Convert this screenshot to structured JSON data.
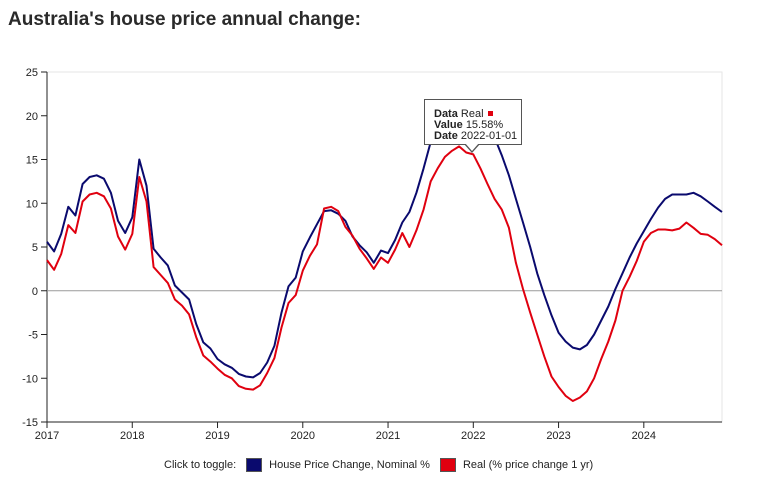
{
  "page": {
    "title": "Australia's house price annual change:"
  },
  "chart_data": {
    "type": "line",
    "title": "Australia's house price annual change:",
    "xlabel": "",
    "ylabel": "",
    "xlim": [
      2017.0,
      2024.917
    ],
    "ylim": [
      -15,
      25
    ],
    "yticks": [
      -15,
      -10,
      -5,
      0,
      5,
      10,
      15,
      20,
      25
    ],
    "xticks": [
      2017,
      2018,
      2019,
      2020,
      2021,
      2022,
      2023,
      2024
    ],
    "grid": false,
    "zero_line": true,
    "legend_position": "bottom",
    "series": [
      {
        "name": "House Price Change, Nominal %",
        "color": "#0a0a6e",
        "x": [
          2017.0,
          2017.083,
          2017.167,
          2017.25,
          2017.333,
          2017.417,
          2017.5,
          2017.583,
          2017.667,
          2017.75,
          2017.833,
          2017.917,
          2018.0,
          2018.083,
          2018.167,
          2018.25,
          2018.333,
          2018.417,
          2018.5,
          2018.583,
          2018.667,
          2018.75,
          2018.833,
          2018.917,
          2019.0,
          2019.083,
          2019.167,
          2019.25,
          2019.333,
          2019.417,
          2019.5,
          2019.583,
          2019.667,
          2019.75,
          2019.833,
          2019.917,
          2020.0,
          2020.083,
          2020.167,
          2020.25,
          2020.333,
          2020.417,
          2020.5,
          2020.583,
          2020.667,
          2020.75,
          2020.833,
          2020.917,
          2021.0,
          2021.083,
          2021.167,
          2021.25,
          2021.333,
          2021.417,
          2021.5,
          2021.583,
          2021.667,
          2021.75,
          2021.833,
          2021.917,
          2022.0,
          2022.083,
          2022.167,
          2022.25,
          2022.333,
          2022.417,
          2022.5,
          2022.583,
          2022.667,
          2022.75,
          2022.833,
          2022.917,
          2023.0,
          2023.083,
          2023.167,
          2023.25,
          2023.333,
          2023.417,
          2023.5,
          2023.583,
          2023.667,
          2023.75,
          2023.833,
          2023.917,
          2024.0,
          2024.083,
          2024.167,
          2024.25,
          2024.333,
          2024.417,
          2024.5,
          2024.583,
          2024.667,
          2024.75,
          2024.833,
          2024.917
        ],
        "values": [
          5.6,
          4.5,
          6.5,
          9.6,
          8.6,
          12.2,
          13.0,
          13.2,
          12.8,
          11.2,
          8.0,
          6.6,
          8.4,
          15.0,
          12.0,
          4.8,
          3.8,
          2.9,
          0.6,
          -0.2,
          -1.0,
          -3.8,
          -5.9,
          -6.6,
          -7.8,
          -8.4,
          -8.8,
          -9.5,
          -9.8,
          -9.9,
          -9.4,
          -8.2,
          -6.3,
          -2.5,
          0.5,
          1.5,
          4.5,
          6.1,
          7.6,
          9.1,
          9.2,
          8.8,
          8.0,
          6.2,
          5.2,
          4.4,
          3.2,
          4.6,
          4.3,
          5.8,
          7.8,
          9.0,
          11.2,
          14.0,
          17.0,
          18.0,
          18.3,
          18.6,
          19.0,
          18.2,
          16.4,
          17.0,
          19.0,
          17.5,
          15.5,
          13.2,
          10.5,
          7.8,
          5.0,
          2.0,
          -0.5,
          -2.8,
          -4.8,
          -5.8,
          -6.5,
          -6.7,
          -6.2,
          -5.0,
          -3.4,
          -1.8,
          0.2,
          2.0,
          3.8,
          5.4,
          6.8,
          8.2,
          9.5,
          10.5,
          11.0,
          11.0,
          11.0,
          11.2,
          10.8,
          10.2,
          9.6,
          9.0
        ],
        "toggle_label": "House Price Change, Nominal %"
      },
      {
        "name": "Real (% price change 1 yr)",
        "color": "#e0000f",
        "x": [
          2017.0,
          2017.083,
          2017.167,
          2017.25,
          2017.333,
          2017.417,
          2017.5,
          2017.583,
          2017.667,
          2017.75,
          2017.833,
          2017.917,
          2018.0,
          2018.083,
          2018.167,
          2018.25,
          2018.333,
          2018.417,
          2018.5,
          2018.583,
          2018.667,
          2018.75,
          2018.833,
          2018.917,
          2019.0,
          2019.083,
          2019.167,
          2019.25,
          2019.333,
          2019.417,
          2019.5,
          2019.583,
          2019.667,
          2019.75,
          2019.833,
          2019.917,
          2020.0,
          2020.083,
          2020.167,
          2020.25,
          2020.333,
          2020.417,
          2020.5,
          2020.583,
          2020.667,
          2020.75,
          2020.833,
          2020.917,
          2021.0,
          2021.083,
          2021.167,
          2021.25,
          2021.333,
          2021.417,
          2021.5,
          2021.583,
          2021.667,
          2021.75,
          2021.833,
          2021.917,
          2022.0,
          2022.083,
          2022.167,
          2022.25,
          2022.333,
          2022.417,
          2022.5,
          2022.583,
          2022.667,
          2022.75,
          2022.833,
          2022.917,
          2023.0,
          2023.083,
          2023.167,
          2023.25,
          2023.333,
          2023.417,
          2023.5,
          2023.583,
          2023.667,
          2023.75,
          2023.833,
          2023.917,
          2024.0,
          2024.083,
          2024.167,
          2024.25,
          2024.333,
          2024.417,
          2024.5,
          2024.583,
          2024.667,
          2024.75,
          2024.833,
          2024.917
        ],
        "values": [
          3.5,
          2.4,
          4.2,
          7.5,
          6.6,
          10.2,
          11.0,
          11.2,
          10.8,
          9.4,
          6.2,
          4.7,
          6.5,
          13.0,
          10.2,
          2.7,
          1.8,
          0.9,
          -1.0,
          -1.7,
          -2.7,
          -5.3,
          -7.4,
          -8.1,
          -8.9,
          -9.6,
          -10.0,
          -10.9,
          -11.2,
          -11.3,
          -10.8,
          -9.4,
          -7.7,
          -4.2,
          -1.4,
          -0.5,
          2.3,
          4.0,
          5.3,
          9.4,
          9.6,
          9.1,
          7.3,
          6.3,
          4.8,
          3.7,
          2.5,
          3.8,
          3.2,
          4.7,
          6.6,
          5.0,
          6.9,
          9.3,
          12.5,
          14.0,
          15.3,
          16.0,
          16.5,
          15.8,
          15.58,
          14.0,
          12.2,
          10.5,
          9.3,
          7.2,
          3.2,
          0.2,
          -2.5,
          -5.0,
          -7.5,
          -9.8,
          -11.0,
          -12.0,
          -12.6,
          -12.2,
          -11.5,
          -10.0,
          -7.8,
          -5.8,
          -3.4,
          0.0,
          1.6,
          3.4,
          5.6,
          6.6,
          7.0,
          7.0,
          6.9,
          7.1,
          7.8,
          7.2,
          6.5,
          6.4,
          5.9,
          5.2
        ],
        "toggle_label": "Real (% price change 1 yr)"
      }
    ]
  },
  "legend": {
    "prefix": "Click to toggle:"
  },
  "tooltip": {
    "data_key": "Data",
    "data_val": "Real",
    "value_key": "Value",
    "value_val": "15.58%",
    "date_key": "Date",
    "date_val": "2022-01-01",
    "dot_color": "#e0000f"
  }
}
